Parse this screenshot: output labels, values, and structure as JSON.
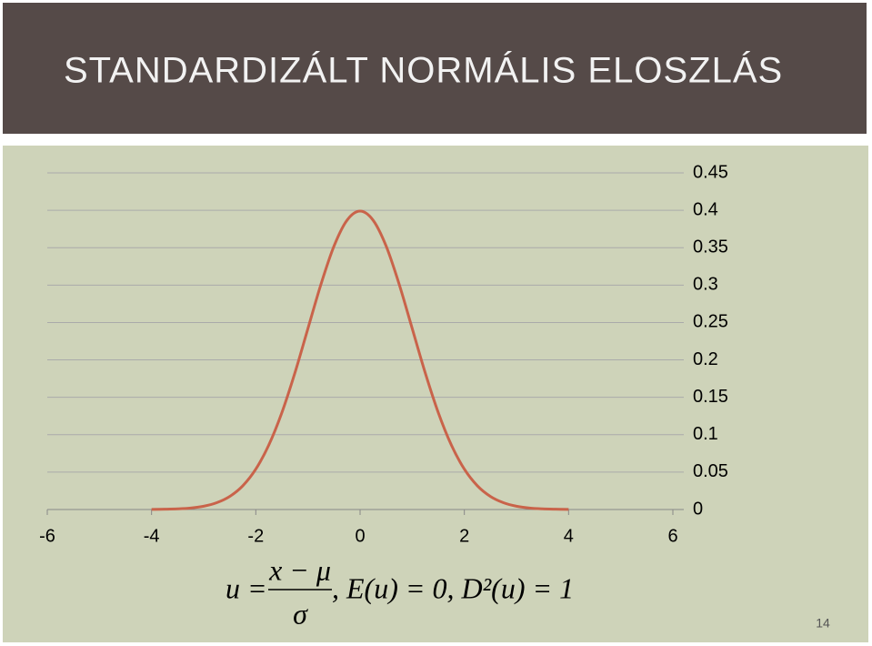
{
  "slide": {
    "title": "STANDARDIZÁLT NORMÁLIS ELOSZLÁS",
    "page_number": "14",
    "formula": {
      "lhs": "u =",
      "numerator": "x − μ",
      "denominator": "σ",
      "rest": ",   E(u) = 0,   D²(u) = 1"
    }
  },
  "chart_data": {
    "type": "line",
    "x": [
      -4,
      -3.75,
      -3.5,
      -3.25,
      -3,
      -2.75,
      -2.5,
      -2.25,
      -2,
      -1.75,
      -1.5,
      -1.25,
      -1,
      -0.75,
      -0.5,
      -0.25,
      0,
      0.25,
      0.5,
      0.75,
      1,
      1.25,
      1.5,
      1.75,
      2,
      2.25,
      2.5,
      2.75,
      3,
      3.25,
      3.5,
      3.75,
      4
    ],
    "series": [
      {
        "color": "#c9634a",
        "values": [
          0.0001,
          0.0004,
          0.0009,
          0.002,
          0.0044,
          0.0091,
          0.0175,
          0.0317,
          0.054,
          0.0863,
          0.1295,
          0.1826,
          0.242,
          0.3011,
          0.3521,
          0.3867,
          0.3989,
          0.3867,
          0.3521,
          0.3011,
          0.242,
          0.1826,
          0.1295,
          0.0863,
          0.054,
          0.0317,
          0.0175,
          0.0091,
          0.0044,
          0.002,
          0.0009,
          0.0004,
          0.0001
        ]
      }
    ],
    "xlim": [
      -6,
      6
    ],
    "xticks": [
      -6,
      -4,
      -2,
      0,
      2,
      4,
      6
    ],
    "ylim": [
      0,
      0.45
    ],
    "yticks": [
      0,
      0.05,
      0.1,
      0.15,
      0.2,
      0.25,
      0.3,
      0.35,
      0.4,
      0.45
    ],
    "grid": true
  }
}
